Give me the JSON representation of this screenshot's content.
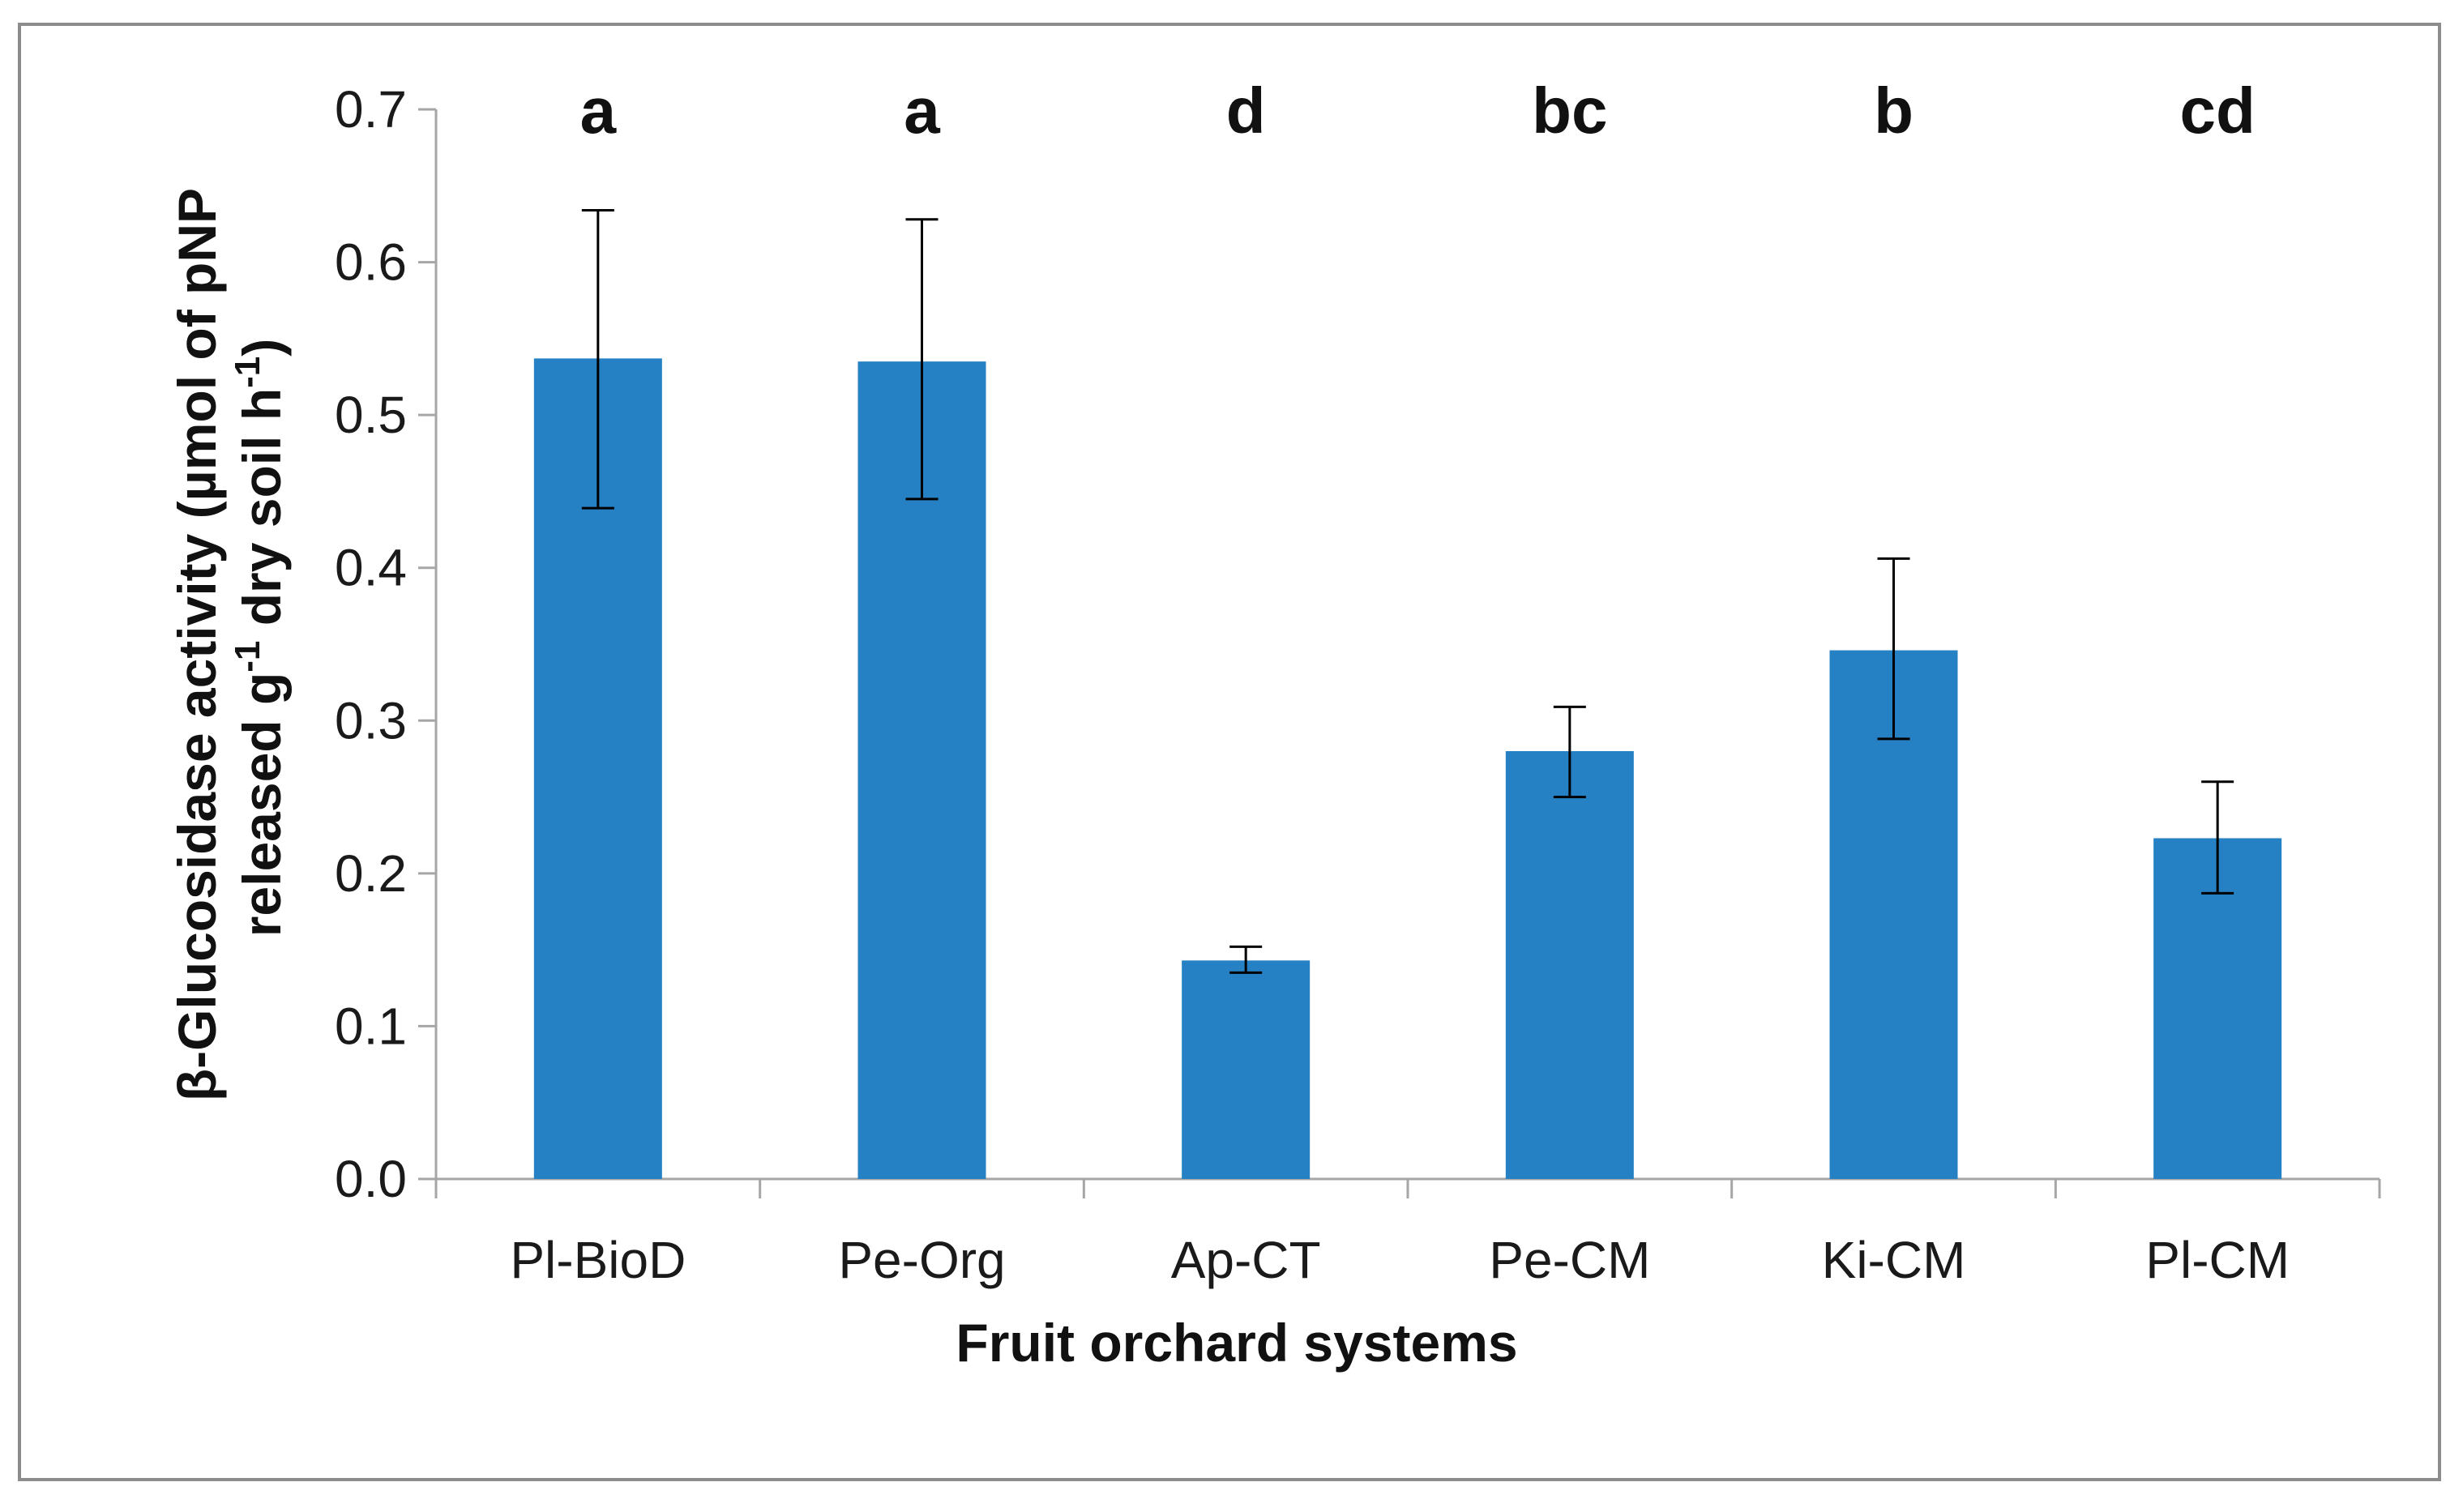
{
  "chart_data": {
    "type": "bar",
    "categories": [
      "Pl-BioD",
      "Pe-Org",
      "Ap-CT",
      "Pe-CM",
      "Ki-CM",
      "Pl-CM"
    ],
    "values": [
      0.537,
      0.535,
      0.143,
      0.28,
      0.346,
      0.223
    ],
    "error_low": [
      0.439,
      0.445,
      0.135,
      0.25,
      0.288,
      0.187
    ],
    "error_high": [
      0.634,
      0.628,
      0.152,
      0.309,
      0.406,
      0.26
    ],
    "significance_letters": [
      "a",
      "a",
      "d",
      "bc",
      "b",
      "cd"
    ],
    "ylim": [
      0,
      0.7
    ],
    "yticks": [
      0.0,
      0.1,
      0.2,
      0.3,
      0.4,
      0.5,
      0.6,
      0.7
    ],
    "ytick_labels": [
      "0.0",
      "0.1",
      "0.2",
      "0.3",
      "0.4",
      "0.5",
      "0.6",
      "0.7"
    ],
    "xlabel": "Fruit orchard systems",
    "ylabel_line1": "β-Glucosidase  activity (µmol of pNP",
    "ylabel_line2_prefix": "released g",
    "ylabel_line2_sup1": "-1",
    "ylabel_line2_mid": " dry soil h",
    "ylabel_line2_sup2": "-1",
    "ylabel_line2_suffix": ")",
    "bar_color": "#2581c4",
    "axis_color": "#a6a6a6",
    "errorbar_color": "#000000",
    "grid": false
  }
}
